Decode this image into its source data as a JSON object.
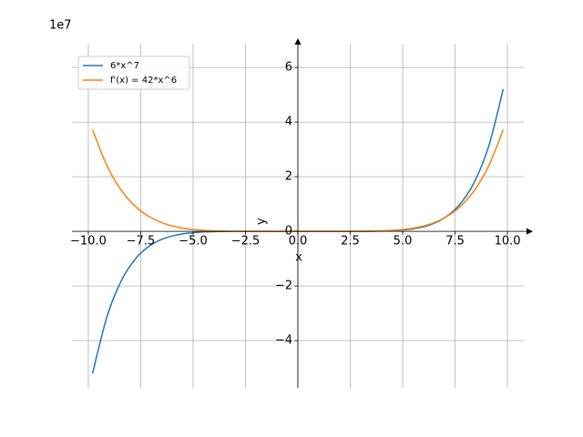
{
  "chart_data": {
    "type": "line",
    "offset_text": "1e7",
    "x_label": "x",
    "y_label": "y",
    "x": [
      -9.8,
      -9.1,
      -8.4,
      -7.7,
      -7.0,
      -6.3,
      -5.6,
      -4.9,
      -4.2,
      -3.5,
      -2.8,
      -2.1,
      -1.4,
      -0.7,
      0,
      0.7,
      1.4,
      2.1,
      2.8,
      3.5,
      4.2,
      4.9,
      5.6,
      6.3,
      7.0,
      7.7,
      8.4,
      9.1,
      9.8
    ],
    "series": [
      {
        "name": "6*x^7",
        "color": "#1f77b4",
        "values": [
          -5.2088,
          -3.1006,
          -1.7705,
          -0.9629,
          -0.4941,
          -0.2363,
          -0.1036,
          -0.0407,
          -0.0138,
          -0.0039,
          -0.0008,
          -0.0001,
          0,
          0,
          0,
          0,
          0,
          0.0001,
          0.0008,
          0.0039,
          0.0138,
          0.0407,
          0.1036,
          0.2363,
          0.4941,
          0.9629,
          1.7705,
          3.1006,
          5.2088
        ]
      },
      {
        "name": "f'(x) = 42*x^6",
        "color": "#ff7f0e",
        "values": [
          3.7205,
          2.3851,
          1.4755,
          0.8754,
          0.4941,
          0.2626,
          0.1295,
          0.0581,
          0.0231,
          0.0077,
          0.002,
          0.0004,
          0,
          0,
          0,
          0,
          0,
          0.0004,
          0.002,
          0.0077,
          0.0231,
          0.0581,
          0.1295,
          0.2626,
          0.4941,
          0.8754,
          1.4755,
          2.3851,
          3.7205
        ]
      }
    ],
    "xlim": [
      -10.78,
      10.78
    ],
    "ylim": [
      -5.73,
      6.87
    ],
    "xticks": [
      {
        "value": -10,
        "label": "−10.0"
      },
      {
        "value": -7.5,
        "label": "−7.5"
      },
      {
        "value": -5,
        "label": "−5.0"
      },
      {
        "value": -2.5,
        "label": "−2.5"
      },
      {
        "value": 0,
        "label": "0.0"
      },
      {
        "value": 2.5,
        "label": "2.5"
      },
      {
        "value": 5,
        "label": "5.0"
      },
      {
        "value": 7.5,
        "label": "7.5"
      },
      {
        "value": 10,
        "label": "10.0"
      }
    ],
    "yticks": [
      {
        "value": -4,
        "label": "−4"
      },
      {
        "value": -2,
        "label": "−2"
      },
      0,
      2,
      4,
      6
    ],
    "grid": true,
    "legend": "upper left"
  }
}
